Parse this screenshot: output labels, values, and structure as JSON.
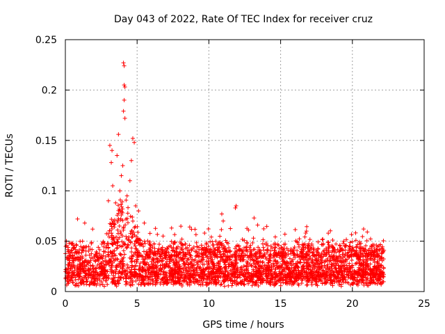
{
  "chart_data": {
    "type": "scatter",
    "title": "Day 043 of 2022, Rate Of TEC Index for receiver cruz",
    "xlabel": "GPS time / hours",
    "ylabel": "ROTI / TECUs",
    "xlim": [
      0,
      25
    ],
    "ylim": [
      0,
      0.25
    ],
    "xticks": [
      0,
      5,
      10,
      15,
      20,
      25
    ],
    "xtick_labels": [
      "0",
      "5",
      "10",
      "15",
      "20",
      "25"
    ],
    "yticks": [
      0,
      0.05,
      0.1,
      0.15,
      0.2,
      0.25
    ],
    "ytick_labels": [
      "0",
      "0.05",
      "0.1",
      "0.15",
      "0.2",
      "0.25"
    ],
    "grid": true,
    "marker": "+",
    "color": "#ff0000",
    "data_x_range": [
      0,
      22.2
    ],
    "series": [
      {
        "name": "ROTI",
        "highlight_points": [
          [
            4.05,
            0.227
          ],
          [
            4.1,
            0.224
          ],
          [
            4.1,
            0.205
          ],
          [
            4.15,
            0.203
          ],
          [
            4.1,
            0.19
          ],
          [
            4.05,
            0.179
          ],
          [
            4.15,
            0.172
          ],
          [
            3.7,
            0.156
          ],
          [
            4.7,
            0.152
          ],
          [
            4.8,
            0.148
          ],
          [
            3.1,
            0.145
          ],
          [
            3.25,
            0.14
          ],
          [
            3.6,
            0.135
          ],
          [
            4.6,
            0.13
          ],
          [
            3.2,
            0.128
          ],
          [
            4.0,
            0.125
          ],
          [
            3.9,
            0.115
          ],
          [
            4.5,
            0.11
          ],
          [
            3.3,
            0.105
          ],
          [
            3.8,
            0.1
          ],
          [
            4.3,
            0.095
          ],
          [
            3.0,
            0.09
          ],
          [
            3.5,
            0.088
          ],
          [
            4.9,
            0.085
          ],
          [
            5.1,
            0.08
          ],
          [
            11.9,
            0.085
          ],
          [
            11.85,
            0.083
          ],
          [
            10.9,
            0.077
          ],
          [
            13.15,
            0.073
          ],
          [
            0.85,
            0.072
          ],
          [
            1.35,
            0.068
          ],
          [
            11.0,
            0.07
          ],
          [
            16.8,
            0.06
          ],
          [
            16.75,
            0.058
          ],
          [
            19.4,
            0.05
          ],
          [
            13.4,
            0.066
          ],
          [
            7.4,
            0.063
          ],
          [
            15.3,
            0.057
          ],
          [
            9.7,
            0.058
          ],
          [
            1.9,
            0.062
          ],
          [
            5.5,
            0.068
          ]
        ],
        "bulk_envelope": {
          "note": "dense band of points across 0–22.2 h",
          "baseline_low": 0.005,
          "baseline_high": 0.04,
          "storm_peak_hours": [
            2.5,
            5.5
          ],
          "storm_peak_high": 0.09
        }
      }
    ]
  }
}
